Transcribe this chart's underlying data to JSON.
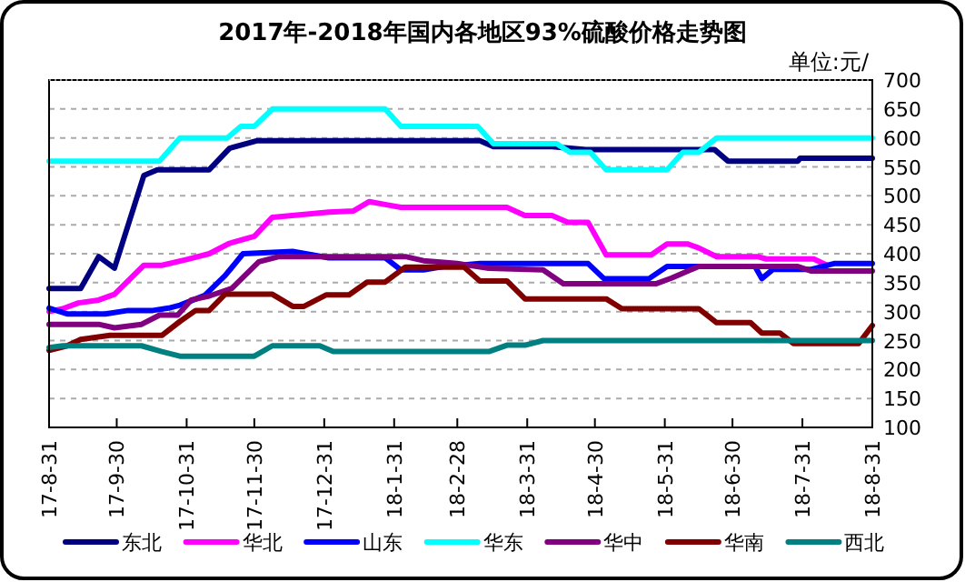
{
  "chart_data": {
    "type": "line",
    "title": "2017年-2018年国内各地区93%硫酸价格走势图",
    "ylabel": "单位:元/",
    "xlim": [
      "2017-08-31",
      "2018-08-31"
    ],
    "xticks": [
      {
        "value": "2017-08-31",
        "label": "17-8-31"
      },
      {
        "value": "2017-09-30",
        "label": "17-9-30"
      },
      {
        "value": "2017-10-31",
        "label": "17-10-31"
      },
      {
        "value": "2017-11-30",
        "label": "17-11-30"
      },
      {
        "value": "2017-12-31",
        "label": "17-12-31"
      },
      {
        "value": "2018-01-31",
        "label": "18-1-31"
      },
      {
        "value": "2018-02-28",
        "label": "18-2-28"
      },
      {
        "value": "2018-03-31",
        "label": "18-3-31"
      },
      {
        "value": "2018-04-30",
        "label": "18-4-30"
      },
      {
        "value": "2018-05-31",
        "label": "18-5-31"
      },
      {
        "value": "2018-06-30",
        "label": "18-6-30"
      },
      {
        "value": "2018-07-31",
        "label": "18-7-31"
      },
      {
        "value": "2018-08-31",
        "label": "18-8-31"
      }
    ],
    "ylim": [
      100,
      700
    ],
    "yticks": [
      100,
      150,
      200,
      250,
      300,
      350,
      400,
      450,
      500,
      550,
      600,
      650,
      700
    ],
    "grid": "y",
    "legend": "bottom",
    "marker": "none",
    "line_style": "solid",
    "series": [
      {
        "name": "东北",
        "color": "#000080",
        "x": [
          "2017-08-31",
          "2017-09-14",
          "2017-09-22",
          "2017-09-29",
          "2017-10-12",
          "2017-10-18",
          "2017-11-10",
          "2017-11-19",
          "2017-12-01",
          "2018-03-10",
          "2018-03-16",
          "2018-04-11",
          "2018-04-26",
          "2018-06-22",
          "2018-06-28",
          "2018-07-29",
          "2018-07-30",
          "2018-08-31"
        ],
        "values": [
          340,
          340,
          395,
          375,
          535,
          545,
          545,
          582,
          595,
          595,
          585,
          585,
          580,
          580,
          560,
          560,
          565,
          565
        ]
      },
      {
        "name": "华北",
        "color": "#ff00ff",
        "x": [
          "2017-08-31",
          "2017-09-06",
          "2017-09-13",
          "2017-09-22",
          "2017-09-29",
          "2017-10-12",
          "2017-10-20",
          "2017-10-31",
          "2017-11-10",
          "2017-11-19",
          "2017-11-30",
          "2017-12-08",
          "2017-12-20",
          "2018-01-02",
          "2018-01-13",
          "2018-01-20",
          "2018-01-27",
          "2018-02-03",
          "2018-03-22",
          "2018-03-30",
          "2018-04-11",
          "2018-04-18",
          "2018-04-27",
          "2018-05-05",
          "2018-05-25",
          "2018-06-01",
          "2018-06-10",
          "2018-06-15",
          "2018-06-23",
          "2018-07-11",
          "2018-07-15",
          "2018-08-05",
          "2018-08-11"
        ],
        "values": [
          300,
          305,
          315,
          320,
          330,
          380,
          380,
          390,
          400,
          418,
          430,
          463,
          467,
          472,
          474,
          490,
          485,
          480,
          480,
          466,
          466,
          454,
          454,
          398,
          398,
          417,
          417,
          410,
          395,
          395,
          391,
          391,
          380
        ]
      },
      {
        "name": "山东",
        "color": "#0000ff",
        "x": [
          "2017-08-31",
          "2017-09-08",
          "2017-09-25",
          "2017-10-05",
          "2017-10-16",
          "2017-10-23",
          "2017-10-28",
          "2017-11-08",
          "2017-11-17",
          "2017-11-25",
          "2017-12-17",
          "2018-01-02",
          "2018-01-27",
          "2018-02-03",
          "2018-02-13",
          "2018-02-22",
          "2018-03-10",
          "2018-04-27",
          "2018-05-04",
          "2018-05-24",
          "2018-06-01",
          "2018-07-10",
          "2018-07-13",
          "2018-07-18",
          "2018-08-04",
          "2018-08-14",
          "2018-08-31"
        ],
        "values": [
          306,
          296,
          296,
          302,
          302,
          306,
          311,
          328,
          362,
          400,
          404,
          393,
          393,
          372,
          372,
          378,
          383,
          383,
          357,
          357,
          378,
          378,
          357,
          373,
          373,
          383,
          383
        ]
      },
      {
        "name": "华东",
        "color": "#00ffff",
        "x": [
          "2017-08-31",
          "2017-10-19",
          "2017-10-28",
          "2017-11-18",
          "2017-11-24",
          "2017-11-30",
          "2017-12-08",
          "2018-01-27",
          "2018-02-03",
          "2018-03-09",
          "2018-03-16",
          "2018-04-13",
          "2018-04-19",
          "2018-04-28",
          "2018-05-05",
          "2018-06-01",
          "2018-06-08",
          "2018-06-15",
          "2018-06-23",
          "2018-08-31"
        ],
        "values": [
          560,
          560,
          600,
          600,
          620,
          620,
          650,
          650,
          620,
          620,
          590,
          590,
          575,
          575,
          545,
          545,
          575,
          575,
          600,
          600
        ]
      },
      {
        "name": "华中",
        "color": "#800080",
        "x": [
          "2017-08-31",
          "2017-09-22",
          "2017-09-29",
          "2017-10-11",
          "2017-10-19",
          "2017-10-27",
          "2017-11-02",
          "2017-11-10",
          "2017-11-20",
          "2017-12-02",
          "2017-12-11",
          "2018-02-05",
          "2018-02-13",
          "2018-02-28",
          "2018-03-14",
          "2018-04-07",
          "2018-04-16",
          "2018-05-27",
          "2018-06-03",
          "2018-06-15",
          "2018-07-29",
          "2018-08-04",
          "2018-08-31"
        ],
        "values": [
          278,
          278,
          272,
          278,
          294,
          294,
          320,
          327,
          340,
          386,
          395,
          395,
          388,
          383,
          375,
          372,
          348,
          348,
          358,
          378,
          378,
          370,
          370
        ]
      },
      {
        "name": "华南",
        "color": "#800000",
        "x": [
          "2017-08-31",
          "2017-09-08",
          "2017-09-14",
          "2017-09-27",
          "2017-10-20",
          "2017-10-28",
          "2017-11-04",
          "2017-11-10",
          "2017-11-17",
          "2017-12-08",
          "2017-12-17",
          "2017-12-22",
          "2018-01-01",
          "2018-01-11",
          "2018-01-19",
          "2018-01-27",
          "2018-02-05",
          "2018-03-03",
          "2018-03-10",
          "2018-03-22",
          "2018-03-30",
          "2018-05-05",
          "2018-05-12",
          "2018-06-15",
          "2018-06-23",
          "2018-07-08",
          "2018-07-13",
          "2018-07-21",
          "2018-07-27",
          "2018-08-25",
          "2018-08-31"
        ],
        "values": [
          233,
          241,
          252,
          259,
          259,
          283,
          302,
          302,
          330,
          330,
          309,
          309,
          329,
          329,
          351,
          351,
          377,
          377,
          353,
          353,
          322,
          322,
          305,
          305,
          281,
          281,
          263,
          263,
          245,
          245,
          276
        ]
      },
      {
        "name": "西北",
        "color": "#008080",
        "x": [
          "2017-08-31",
          "2017-09-06",
          "2017-10-11",
          "2017-10-20",
          "2017-10-28",
          "2017-11-30",
          "2017-12-08",
          "2017-12-29",
          "2018-01-04",
          "2018-03-14",
          "2018-03-22",
          "2018-03-30",
          "2018-04-07",
          "2018-08-31"
        ],
        "values": [
          238,
          241,
          241,
          231,
          223,
          223,
          241,
          241,
          231,
          231,
          242,
          242,
          250,
          250
        ]
      }
    ]
  }
}
